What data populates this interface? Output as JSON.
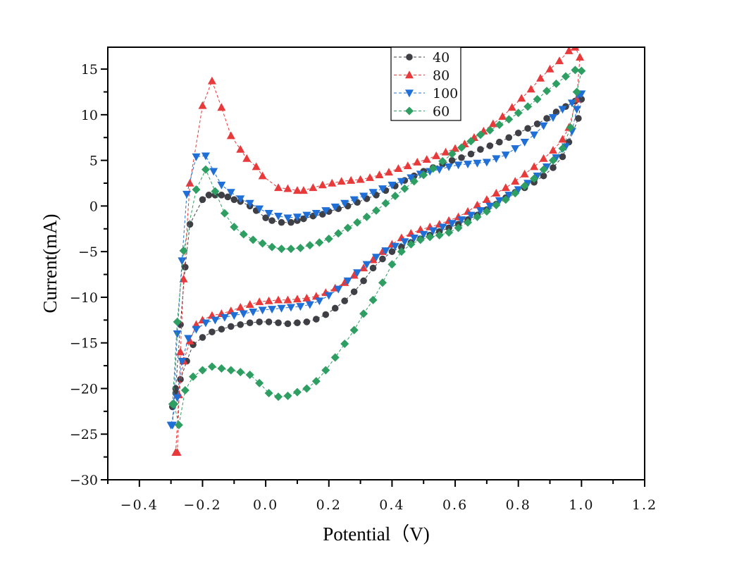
{
  "chart_data": {
    "type": "line",
    "title": "",
    "xlabel": "Potential（V)",
    "ylabel": "Current(mA)",
    "xlim": [
      -0.5,
      1.2
    ],
    "ylim": [
      -30,
      17.4
    ],
    "xticks": [
      -0.4,
      -0.2,
      0.0,
      0.2,
      0.4,
      0.6,
      0.8,
      1.0,
      1.2
    ],
    "xtick_labels": [
      "−0.4",
      "−0.2",
      "0.0",
      "0.2",
      "0.4",
      "0.6",
      "0.8",
      "1.0",
      "1.2"
    ],
    "yticks": [
      -30,
      -25,
      -20,
      -15,
      -10,
      -5,
      0,
      5,
      10,
      15
    ],
    "ytick_labels": [
      "−30",
      "−25",
      "−20",
      "−15",
      "−10",
      "−5",
      "0",
      "5",
      "10",
      "15"
    ],
    "grid": false,
    "legend_position": "top-center",
    "series": [
      {
        "name": "40",
        "color": "#3f3f46",
        "marker": "circle",
        "x": [
          -0.295,
          -0.285,
          -0.27,
          -0.255,
          -0.24,
          -0.2,
          -0.18,
          -0.16,
          -0.14,
          -0.12,
          -0.1,
          -0.08,
          -0.05,
          -0.03,
          0.0,
          0.02,
          0.05,
          0.08,
          0.1,
          0.12,
          0.15,
          0.18,
          0.2,
          0.23,
          0.26,
          0.29,
          0.32,
          0.35,
          0.38,
          0.41,
          0.44,
          0.47,
          0.5,
          0.53,
          0.56,
          0.59,
          0.62,
          0.65,
          0.68,
          0.71,
          0.74,
          0.77,
          0.8,
          0.83,
          0.86,
          0.89,
          0.92,
          0.95,
          0.98,
          1.0,
          0.99,
          0.96,
          0.94,
          0.91,
          0.88,
          0.85,
          0.82,
          0.79,
          0.76,
          0.73,
          0.7,
          0.67,
          0.64,
          0.61,
          0.58,
          0.55,
          0.52,
          0.49,
          0.46,
          0.43,
          0.4,
          0.37,
          0.34,
          0.31,
          0.28,
          0.25,
          0.22,
          0.19,
          0.16,
          0.13,
          0.1,
          0.07,
          0.04,
          0.01,
          -0.02,
          -0.05,
          -0.08,
          -0.11,
          -0.14,
          -0.17,
          -0.2,
          -0.23,
          -0.25,
          -0.27,
          -0.285,
          -0.295
        ],
        "y": [
          -22,
          -20,
          -13,
          -6.7,
          -2,
          0.7,
          1.2,
          1.2,
          1.2,
          1.0,
          0.7,
          0.5,
          0,
          -0.5,
          -1.3,
          -1.6,
          -1.8,
          -1.8,
          -1.6,
          -1.4,
          -1.1,
          -0.9,
          -0.6,
          -0.3,
          0,
          0.4,
          0.8,
          1.2,
          1.7,
          2.2,
          2.8,
          3.3,
          3.8,
          4.2,
          4.6,
          5.0,
          5.3,
          5.7,
          6.2,
          6.6,
          7.0,
          7.5,
          8.0,
          8.5,
          9.0,
          9.6,
          10.3,
          10.9,
          11.5,
          11.7,
          9.6,
          7.0,
          5.4,
          4.2,
          3.3,
          2.6,
          2.0,
          1.5,
          0.9,
          0.2,
          -0.4,
          -1.0,
          -1.5,
          -2.0,
          -2.4,
          -2.8,
          -3.2,
          -3.6,
          -4.0,
          -4.5,
          -5.0,
          -5.8,
          -6.8,
          -8.2,
          -9.4,
          -10.4,
          -11.2,
          -11.9,
          -12.4,
          -12.7,
          -12.8,
          -12.9,
          -12.8,
          -12.7,
          -12.7,
          -12.8,
          -13.0,
          -13.2,
          -13.5,
          -13.8,
          -14.4,
          -15.2,
          -17,
          -19,
          -20.5,
          -22
        ]
      },
      {
        "name": "80",
        "color": "#e8393b",
        "marker": "triangle-up",
        "x": [
          -0.28,
          -0.27,
          -0.26,
          -0.24,
          -0.2,
          -0.17,
          -0.14,
          -0.11,
          -0.08,
          -0.06,
          -0.03,
          -0.01,
          0.04,
          0.07,
          0.1,
          0.12,
          0.15,
          0.18,
          0.21,
          0.24,
          0.27,
          0.3,
          0.33,
          0.36,
          0.39,
          0.42,
          0.45,
          0.48,
          0.51,
          0.54,
          0.57,
          0.6,
          0.63,
          0.66,
          0.69,
          0.72,
          0.75,
          0.78,
          0.81,
          0.84,
          0.87,
          0.9,
          0.93,
          0.96,
          0.98,
          0.995,
          0.985,
          0.96,
          0.94,
          0.91,
          0.88,
          0.85,
          0.82,
          0.79,
          0.76,
          0.73,
          0.7,
          0.67,
          0.64,
          0.61,
          0.58,
          0.55,
          0.52,
          0.49,
          0.46,
          0.43,
          0.4,
          0.37,
          0.34,
          0.31,
          0.28,
          0.25,
          0.22,
          0.19,
          0.16,
          0.13,
          0.1,
          0.07,
          0.04,
          0.01,
          -0.02,
          -0.05,
          -0.08,
          -0.11,
          -0.14,
          -0.17,
          -0.2,
          -0.22,
          -0.24,
          -0.26,
          -0.275,
          -0.285
        ],
        "y": [
          -27,
          -16,
          -8,
          2.5,
          11,
          13.7,
          10.8,
          7.7,
          6.2,
          5.2,
          4.3,
          3.3,
          2.0,
          1.9,
          1.7,
          1.7,
          2.0,
          2.3,
          2.5,
          2.7,
          2.8,
          2.9,
          3.1,
          3.4,
          3.7,
          4.1,
          4.4,
          4.8,
          5.1,
          5.5,
          5.9,
          6.3,
          6.8,
          7.5,
          8.2,
          9.0,
          9.8,
          10.8,
          11.8,
          12.8,
          14.0,
          15.0,
          15.9,
          17.0,
          17.4,
          16.3,
          11.7,
          8.6,
          7.3,
          6.1,
          5.2,
          4.3,
          3.5,
          2.7,
          2.0,
          1.4,
          0.7,
          0.1,
          -0.6,
          -1.2,
          -1.6,
          -2.0,
          -2.3,
          -2.6,
          -3.0,
          -3.5,
          -4.2,
          -5.0,
          -5.9,
          -6.8,
          -7.6,
          -8.4,
          -9.0,
          -9.5,
          -9.9,
          -10.1,
          -10.2,
          -10.3,
          -10.3,
          -10.4,
          -10.5,
          -10.8,
          -11.1,
          -11.5,
          -11.8,
          -12.0,
          -12.5,
          -13.0,
          -14.8,
          -17,
          -20.7,
          -27
        ]
      },
      {
        "name": "100",
        "color": "#1f6fd6",
        "marker": "triangle-down",
        "x": [
          -0.295,
          -0.28,
          -0.265,
          -0.25,
          -0.22,
          -0.19,
          -0.165,
          -0.14,
          -0.11,
          -0.08,
          -0.05,
          -0.02,
          0.01,
          0.04,
          0.07,
          0.1,
          0.13,
          0.16,
          0.19,
          0.22,
          0.25,
          0.28,
          0.31,
          0.34,
          0.37,
          0.4,
          0.43,
          0.46,
          0.49,
          0.52,
          0.55,
          0.58,
          0.61,
          0.64,
          0.67,
          0.7,
          0.73,
          0.76,
          0.79,
          0.82,
          0.85,
          0.88,
          0.91,
          0.94,
          0.97,
          0.99,
          1.0,
          0.985,
          0.97,
          0.95,
          0.92,
          0.89,
          0.86,
          0.83,
          0.8,
          0.77,
          0.74,
          0.71,
          0.68,
          0.65,
          0.62,
          0.59,
          0.56,
          0.53,
          0.5,
          0.47,
          0.44,
          0.41,
          0.38,
          0.35,
          0.32,
          0.29,
          0.26,
          0.23,
          0.2,
          0.17,
          0.14,
          0.11,
          0.08,
          0.05,
          0.02,
          -0.01,
          -0.04,
          -0.07,
          -0.1,
          -0.13,
          -0.16,
          -0.19,
          -0.22,
          -0.245,
          -0.265,
          -0.28,
          -0.3
        ],
        "y": [
          -24,
          -14,
          -6,
          1.3,
          5.4,
          5.5,
          3.8,
          2.3,
          1.5,
          0.8,
          0.3,
          -0.3,
          -0.8,
          -1.1,
          -1.3,
          -1.2,
          -1.0,
          -0.8,
          -0.5,
          -0.1,
          0.3,
          0.7,
          1.1,
          1.5,
          1.9,
          2.3,
          2.7,
          3.1,
          3.5,
          3.8,
          4.0,
          4.3,
          4.5,
          4.6,
          4.7,
          4.8,
          5.2,
          5.6,
          6.3,
          7.0,
          7.8,
          8.8,
          9.7,
          10.6,
          11.3,
          12.2,
          12.3,
          10.6,
          8.2,
          6.5,
          5.3,
          4.3,
          3.3,
          2.5,
          1.8,
          1.2,
          0.6,
          0.0,
          -0.5,
          -1.0,
          -1.5,
          -1.9,
          -2.3,
          -2.7,
          -3.1,
          -3.5,
          -3.9,
          -4.4,
          -4.9,
          -5.6,
          -6.4,
          -7.3,
          -8.2,
          -9.1,
          -9.8,
          -10.4,
          -10.8,
          -11.0,
          -11.1,
          -11.2,
          -11.3,
          -11.4,
          -11.6,
          -11.8,
          -12.0,
          -12.2,
          -12.5,
          -12.8,
          -13.5,
          -14.5,
          -17,
          -21,
          -24
        ]
      },
      {
        "name": "60",
        "color": "#2e9e62",
        "marker": "diamond",
        "x": [
          -0.295,
          -0.28,
          -0.26,
          -0.22,
          -0.19,
          -0.16,
          -0.13,
          -0.1,
          -0.07,
          -0.04,
          -0.01,
          0.02,
          0.05,
          0.08,
          0.11,
          0.14,
          0.17,
          0.2,
          0.23,
          0.26,
          0.29,
          0.32,
          0.35,
          0.38,
          0.41,
          0.44,
          0.47,
          0.5,
          0.53,
          0.56,
          0.59,
          0.62,
          0.65,
          0.68,
          0.71,
          0.74,
          0.77,
          0.8,
          0.83,
          0.86,
          0.89,
          0.92,
          0.95,
          0.98,
          1.0,
          0.985,
          0.965,
          0.94,
          0.91,
          0.88,
          0.85,
          0.82,
          0.79,
          0.76,
          0.73,
          0.7,
          0.67,
          0.64,
          0.61,
          0.58,
          0.55,
          0.52,
          0.49,
          0.46,
          0.43,
          0.4,
          0.37,
          0.34,
          0.31,
          0.28,
          0.25,
          0.22,
          0.19,
          0.16,
          0.13,
          0.1,
          0.07,
          0.04,
          0.01,
          -0.02,
          -0.05,
          -0.08,
          -0.11,
          -0.14,
          -0.17,
          -0.2,
          -0.23,
          -0.255,
          -0.275,
          -0.29
        ],
        "y": [
          -21.7,
          -12.7,
          -4.9,
          1.8,
          4.0,
          1.6,
          -0.8,
          -2.3,
          -3.1,
          -3.7,
          -4.1,
          -4.5,
          -4.7,
          -4.7,
          -4.6,
          -4.3,
          -4.0,
          -3.6,
          -3.0,
          -2.4,
          -1.8,
          -1.2,
          -0.5,
          0.3,
          1.1,
          1.9,
          2.7,
          3.4,
          4.1,
          4.9,
          5.7,
          6.4,
          7.1,
          7.8,
          8.3,
          8.9,
          9.5,
          10.2,
          10.9,
          11.7,
          12.6,
          13.4,
          14.2,
          14.9,
          14.8,
          12.5,
          8.6,
          6.3,
          5.0,
          4.0,
          3.0,
          2.2,
          1.4,
          0.7,
          0.1,
          -0.6,
          -1.2,
          -1.8,
          -2.4,
          -2.9,
          -3.2,
          -3.4,
          -3.7,
          -4.2,
          -5.0,
          -6.4,
          -8.4,
          -10.3,
          -11.8,
          -13.6,
          -15.1,
          -16.6,
          -18.0,
          -19.2,
          -20.0,
          -20.4,
          -20.8,
          -20.9,
          -20.5,
          -19.4,
          -18.5,
          -18.2,
          -18.0,
          -17.8,
          -17.6,
          -18.0,
          -18.7,
          -20.2,
          -24.0,
          -21.7
        ]
      }
    ]
  },
  "legend": {
    "items": [
      {
        "label": "40",
        "color": "#3f3f46",
        "marker": "circle"
      },
      {
        "label": "80",
        "color": "#e8393b",
        "marker": "triangle-up"
      },
      {
        "label": "100",
        "color": "#1f6fd6",
        "marker": "triangle-down"
      },
      {
        "label": "60",
        "color": "#2e9e62",
        "marker": "diamond"
      }
    ]
  }
}
